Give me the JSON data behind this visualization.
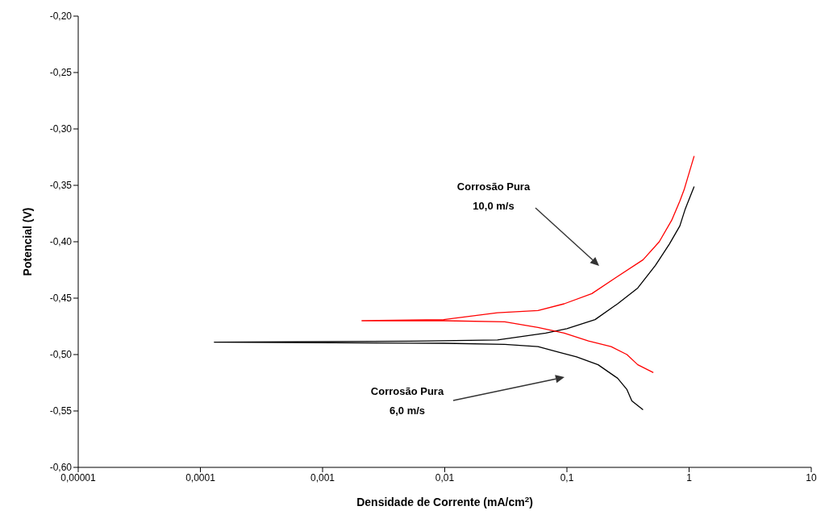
{
  "chart_data": {
    "type": "line",
    "xlabel": "Densidade de Corrente (mA/cm$^{2}$)",
    "ylabel": "Potencial (V)",
    "log": "x",
    "grid": false,
    "legend": false,
    "marker": "none",
    "line_style": "solid",
    "xlim": [
      1e-05,
      10
    ],
    "xticks": [
      {
        "value": 1e-05,
        "label": "0,00001"
      },
      {
        "value": 0.0001,
        "label": "0,0001"
      },
      {
        "value": 0.001,
        "label": "0,001"
      },
      {
        "value": 0.01,
        "label": "0,01"
      },
      {
        "value": 0.1,
        "label": "0,1"
      },
      1,
      10
    ],
    "ylim": [
      -0.6,
      -0.2
    ],
    "yticks": [
      {
        "value": -0.6,
        "label": "-0,60"
      },
      {
        "value": -0.55,
        "label": "-0,55"
      },
      {
        "value": -0.5,
        "label": "-0,50"
      },
      {
        "value": -0.45,
        "label": "-0,45"
      },
      {
        "value": -0.4,
        "label": "-0,40"
      },
      {
        "value": -0.35,
        "label": "-0,35"
      },
      {
        "value": -0.3,
        "label": "-0,30"
      },
      {
        "value": -0.25,
        "label": "-0,25"
      },
      {
        "value": -0.2,
        "label": "-0,20"
      }
    ],
    "series": [
      {
        "color": "#000000",
        "x": [
          0.42,
          0.34,
          0.31,
          0.26,
          0.18,
          0.12,
          0.086,
          0.058,
          0.031,
          0.0098,
          0.00013,
          0.0072,
          0.027,
          0.067,
          0.1,
          0.17,
          0.26,
          0.38,
          0.53,
          0.69,
          0.84,
          0.93,
          1.1
        ],
        "values": [
          -0.549,
          -0.541,
          -0.531,
          -0.521,
          -0.509,
          -0.502,
          -0.498,
          -0.493,
          -0.491,
          -0.49,
          -0.489,
          -0.488,
          -0.487,
          -0.481,
          -0.477,
          -0.469,
          -0.455,
          -0.441,
          -0.421,
          -0.402,
          -0.386,
          -0.371,
          -0.351
        ]
      },
      {
        "color": "#ff0000",
        "x": [
          0.51,
          0.38,
          0.31,
          0.23,
          0.15,
          0.095,
          0.058,
          0.031,
          0.0098,
          0.0021,
          0.0098,
          0.027,
          0.058,
          0.095,
          0.16,
          0.25,
          0.42,
          0.57,
          0.72,
          0.84,
          0.91,
          1.1
        ],
        "values": [
          -0.516,
          -0.509,
          -0.5,
          -0.493,
          -0.488,
          -0.481,
          -0.476,
          -0.471,
          -0.47,
          -0.47,
          -0.469,
          -0.463,
          -0.461,
          -0.455,
          -0.446,
          -0.432,
          -0.416,
          -0.4,
          -0.381,
          -0.364,
          -0.354,
          -0.324
        ]
      }
    ],
    "annotations": [
      "Corrosão Pura\n10,0 m/s",
      "Corrosão Pura\n6,0 m/s"
    ]
  }
}
